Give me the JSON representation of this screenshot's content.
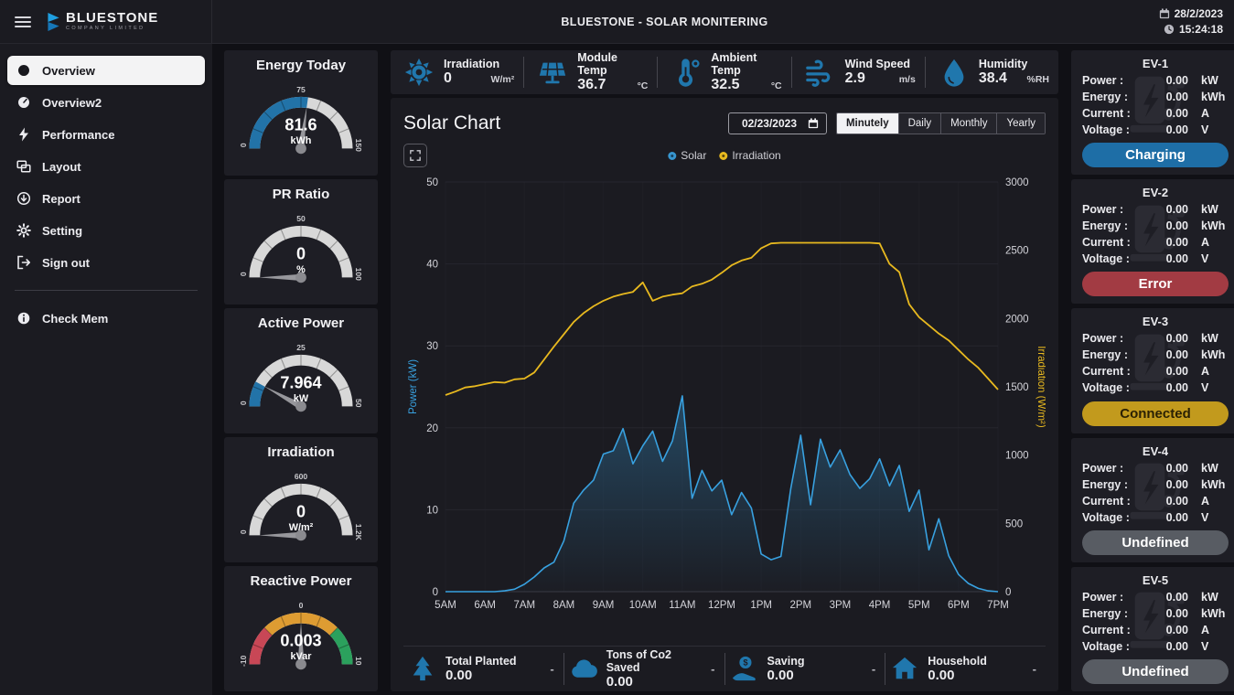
{
  "topbar": {
    "logo_name": "BLUESTONE",
    "logo_subtitle": "COMPANY LIMITED",
    "title": "BLUESTONE - SOLAR MONITERING",
    "date": "28/2/2023",
    "time": "15:24:18"
  },
  "sidebar": {
    "items": [
      {
        "label": "Overview",
        "icon": "gauge-icon",
        "active": true
      },
      {
        "label": "Overview2",
        "icon": "gauge-icon",
        "active": false
      },
      {
        "label": "Performance",
        "icon": "lightning-icon",
        "active": false
      },
      {
        "label": "Layout",
        "icon": "layout-icon",
        "active": false
      },
      {
        "label": "Report",
        "icon": "report-icon",
        "active": false
      },
      {
        "label": "Setting",
        "icon": "gear-icon",
        "active": false
      },
      {
        "label": "Sign out",
        "icon": "signout-icon",
        "active": false
      }
    ],
    "footer_item": {
      "label": "Check Mem",
      "icon": "info-icon"
    }
  },
  "gauges": [
    {
      "title": "Energy Today",
      "value": "81.6",
      "unit": "kWh",
      "numeric": 81.6,
      "min": 0,
      "max": 150,
      "min_label": "0",
      "mid_label": "75",
      "max_label": "150",
      "type": "fill",
      "fill_color": "#2273a8"
    },
    {
      "title": "PR Ratio",
      "value": "0",
      "unit": "%",
      "numeric": 0,
      "min": 0,
      "max": 100,
      "min_label": "0",
      "mid_label": "50",
      "max_label": "100",
      "type": "fill",
      "fill_color": "#2273a8"
    },
    {
      "title": "Active Power",
      "value": "7.964",
      "unit": "kW",
      "numeric": 7.964,
      "min": 0,
      "max": 50,
      "min_label": "0",
      "mid_label": "25",
      "max_label": "50",
      "type": "fill",
      "fill_color": "#2273a8"
    },
    {
      "title": "Irradiation",
      "value": "0",
      "unit": "W/m²",
      "numeric": 0,
      "min": 0,
      "max": 1200,
      "min_label": "0",
      "mid_label": "600",
      "max_label": "1.2K",
      "type": "fill",
      "fill_color": "#2273a8"
    },
    {
      "title": "Reactive Power",
      "value": "0.003",
      "unit": "kVar",
      "numeric": 0.003,
      "min": -10,
      "max": 10,
      "min_label": "-10",
      "mid_label": "0",
      "max_label": "10",
      "type": "segments",
      "segments": [
        {
          "to": 0.25,
          "color": "#c84756"
        },
        {
          "to": 0.75,
          "color": "#de9c32"
        },
        {
          "to": 1.0,
          "color": "#2ba15d"
        }
      ]
    }
  ],
  "stats_top": [
    {
      "label": "Irradiation",
      "value": "0",
      "unit": "W/m²",
      "icon": "sun-icon"
    },
    {
      "label": "Module Temp",
      "value": "36.7",
      "unit": "°C",
      "icon": "solar-panel-icon"
    },
    {
      "label": "Ambient Temp",
      "value": "32.5",
      "unit": "°C",
      "icon": "thermometer-icon"
    },
    {
      "label": "Wind Speed",
      "value": "2.9",
      "unit": "m/s",
      "icon": "wind-icon"
    },
    {
      "label": "Humidity",
      "value": "38.4",
      "unit": "%RH",
      "icon": "humidity-icon"
    }
  ],
  "chart": {
    "title": "Solar Chart",
    "date_value": "02/23/2023",
    "periods": [
      "Minutely",
      "Daily",
      "Monthly",
      "Yearly"
    ],
    "active_period": "Minutely"
  },
  "chart_data": {
    "type": "line",
    "title": "Solar Chart",
    "x_tick_labels": [
      "5AM",
      "6AM",
      "7AM",
      "8AM",
      "9AM",
      "10AM",
      "11AM",
      "12PM",
      "1PM",
      "2PM",
      "3PM",
      "4PM",
      "5PM",
      "6PM",
      "7PM"
    ],
    "times": [
      "05:00",
      "05:15",
      "05:30",
      "05:45",
      "06:00",
      "06:15",
      "06:30",
      "06:45",
      "07:00",
      "07:15",
      "07:30",
      "07:45",
      "08:00",
      "08:15",
      "08:30",
      "08:45",
      "09:00",
      "09:15",
      "09:30",
      "09:45",
      "10:00",
      "10:15",
      "10:30",
      "10:45",
      "11:00",
      "11:15",
      "11:30",
      "11:45",
      "12:00",
      "12:15",
      "12:30",
      "12:45",
      "13:00",
      "13:15",
      "13:30",
      "13:45",
      "14:00",
      "14:15",
      "14:30",
      "14:45",
      "15:00",
      "15:15",
      "15:30",
      "15:45",
      "16:00",
      "16:15",
      "16:30",
      "16:45",
      "17:00",
      "17:15",
      "17:30",
      "17:45",
      "18:00",
      "18:15",
      "18:30",
      "18:45",
      "19:00"
    ],
    "series": [
      {
        "name": "Solar",
        "axis": "left",
        "unit": "kW",
        "color": "#38a1e0",
        "values": [
          0,
          0,
          0,
          0,
          0,
          0,
          0.1,
          0.3,
          0.9,
          1.8,
          2.9,
          3.6,
          6.2,
          10.8,
          12.4,
          13.6,
          16.8,
          17.2,
          19.9,
          15.6,
          17.8,
          19.6,
          15.9,
          18.4,
          23.9,
          11.4,
          14.8,
          12.3,
          13.6,
          9.4,
          12.1,
          10.2,
          4.6,
          3.9,
          4.3,
          12.6,
          19.1,
          10.6,
          18.6,
          15.2,
          17.3,
          14.3,
          12.6,
          13.8,
          16.2,
          12.9,
          15.4,
          9.8,
          12.4,
          5.1,
          8.9,
          4.4,
          2.1,
          1.0,
          0.4,
          0.1,
          0
        ]
      },
      {
        "name": "Irradiation",
        "axis": "right",
        "unit": "W/m²",
        "color": "#e8b91f",
        "values": [
          1440,
          1465,
          1495,
          1505,
          1520,
          1535,
          1530,
          1555,
          1560,
          1605,
          1700,
          1795,
          1885,
          1975,
          2040,
          2090,
          2130,
          2160,
          2180,
          2195,
          2265,
          2130,
          2160,
          2175,
          2185,
          2235,
          2255,
          2285,
          2335,
          2390,
          2425,
          2445,
          2515,
          2550,
          2555,
          2555,
          2555,
          2555,
          2555,
          2555,
          2555,
          2555,
          2555,
          2555,
          2550,
          2400,
          2340,
          2105,
          2010,
          1950,
          1890,
          1840,
          1770,
          1700,
          1640,
          1560,
          1480
        ]
      }
    ],
    "left_axis": {
      "label": "Power (kW)",
      "min": 0,
      "max": 50,
      "ticks": [
        0,
        10,
        20,
        30,
        40,
        50
      ]
    },
    "right_axis": {
      "label": "Irradiation (W/m²)",
      "min": 0,
      "max": 3000,
      "ticks": [
        0,
        500,
        1000,
        1500,
        2000,
        2500,
        3000
      ]
    },
    "legend_position": "top",
    "grid": true
  },
  "stats_bottom": [
    {
      "label": "Total Planted",
      "value": "0.00",
      "extra": "-",
      "icon": "tree-icon"
    },
    {
      "label": "Tons of Co2 Saved",
      "value": "0.00",
      "extra": "-",
      "icon": "cloud-icon"
    },
    {
      "label": "Saving",
      "value": "0.00",
      "extra": "-",
      "icon": "saving-icon"
    },
    {
      "label": "Household",
      "value": "0.00",
      "extra": "-",
      "icon": "house-icon"
    }
  ],
  "ev_labels": {
    "power": "Power :",
    "energy": "Energy :",
    "current": "Current :",
    "voltage": "Voltage :"
  },
  "ev_units": {
    "power": "kW",
    "energy": "kWh",
    "current": "A",
    "voltage": "V"
  },
  "ev_stations": [
    {
      "name": "EV-1",
      "power": "0.00",
      "energy": "0.00",
      "current": "0.00",
      "voltage": "0.00",
      "status": "Charging",
      "status_bg": "#1e6ea6",
      "status_fg": "#ffffff"
    },
    {
      "name": "EV-2",
      "power": "0.00",
      "energy": "0.00",
      "current": "0.00",
      "voltage": "0.00",
      "status": "Error",
      "status_bg": "#a23b43",
      "status_fg": "#ffffff"
    },
    {
      "name": "EV-3",
      "power": "0.00",
      "energy": "0.00",
      "current": "0.00",
      "voltage": "0.00",
      "status": "Connected",
      "status_bg": "#c29a1d",
      "status_fg": "#2b2104"
    },
    {
      "name": "EV-4",
      "power": "0.00",
      "energy": "0.00",
      "current": "0.00",
      "voltage": "0.00",
      "status": "Undefined",
      "status_bg": "#585c63",
      "status_fg": "#ffffff"
    },
    {
      "name": "EV-5",
      "power": "0.00",
      "energy": "0.00",
      "current": "0.00",
      "voltage": "0.00",
      "status": "Undefined",
      "status_bg": "#585c63",
      "status_fg": "#ffffff"
    }
  ]
}
